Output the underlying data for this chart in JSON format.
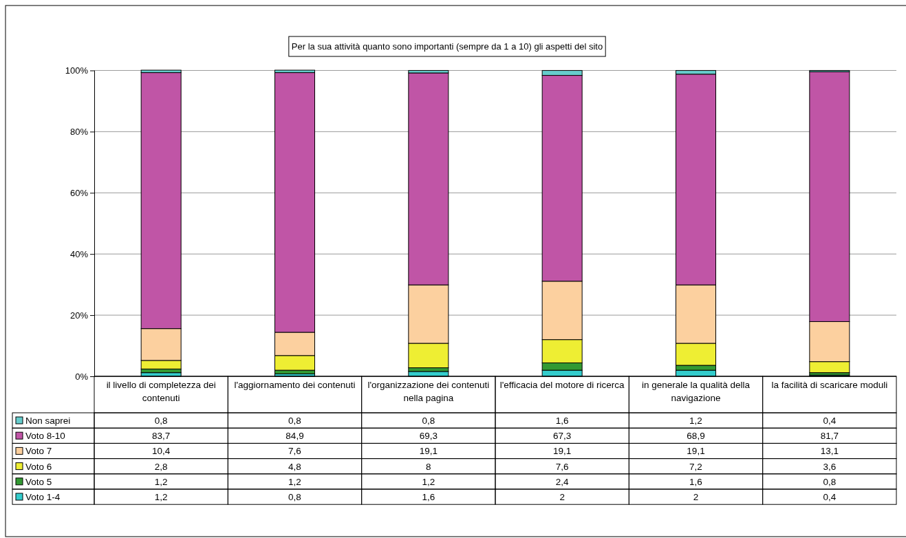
{
  "chart_data": {
    "type": "bar",
    "stacked": true,
    "title": "Per la sua attività quanto sono importanti (sempre da 1 a 10) gli aspetti del sito",
    "categories": [
      "il livello di completezza dei contenuti",
      "l'aggiornamento dei contenuti",
      "l'organizzazione dei contenuti nella pagina",
      "l'efficacia del motore di ricerca",
      "in generale la qualità della navigazione",
      "la facilità di scaricare moduli"
    ],
    "series": [
      {
        "name": "Voto 1-4",
        "color": "#33cccc",
        "values": [
          1.2,
          0.8,
          1.6,
          2,
          2,
          0.4
        ],
        "value_labels": [
          "1,2",
          "0,8",
          "1,6",
          "2",
          "2",
          "0,4"
        ]
      },
      {
        "name": "Voto 5",
        "color": "#339933",
        "values": [
          1.2,
          1.2,
          1.2,
          2.4,
          1.6,
          0.8
        ],
        "value_labels": [
          "1,2",
          "1,2",
          "1,2",
          "2,4",
          "1,6",
          "0,8"
        ]
      },
      {
        "name": "Voto 6",
        "color": "#eeee33",
        "values": [
          2.8,
          4.8,
          8,
          7.6,
          7.2,
          3.6
        ],
        "value_labels": [
          "2,8",
          "4,8",
          "8",
          "7,6",
          "7,2",
          "3,6"
        ]
      },
      {
        "name": "Voto 7",
        "color": "#fcd09f",
        "values": [
          10.4,
          7.6,
          19.1,
          19.1,
          19.1,
          13.1
        ],
        "value_labels": [
          "10,4",
          "7,6",
          "19,1",
          "19,1",
          "19,1",
          "13,1"
        ]
      },
      {
        "name": "Voto 8-10",
        "color": "#c055a6",
        "values": [
          83.7,
          84.9,
          69.3,
          67.3,
          68.9,
          81.7
        ],
        "value_labels": [
          "83,7",
          "84,9",
          "69,3",
          "67,3",
          "68,9",
          "81,7"
        ]
      },
      {
        "name": "Non saprei",
        "color": "#66cccc",
        "values": [
          0.8,
          0.8,
          0.8,
          1.6,
          1.2,
          0.4
        ],
        "value_labels": [
          "0,8",
          "0,8",
          "0,8",
          "1,6",
          "1,2",
          "0,4"
        ]
      }
    ],
    "ylim": [
      0,
      100.1
    ],
    "yticks": [
      {
        "value": 0,
        "label": "0%"
      },
      {
        "value": 20,
        "label": "20%"
      },
      {
        "value": 40,
        "label": "40%"
      },
      {
        "value": 60,
        "label": "60%"
      },
      {
        "value": 80,
        "label": "80%"
      },
      {
        "value": 100,
        "label": "100%"
      }
    ],
    "grid": "y",
    "legend": "bottom"
  }
}
